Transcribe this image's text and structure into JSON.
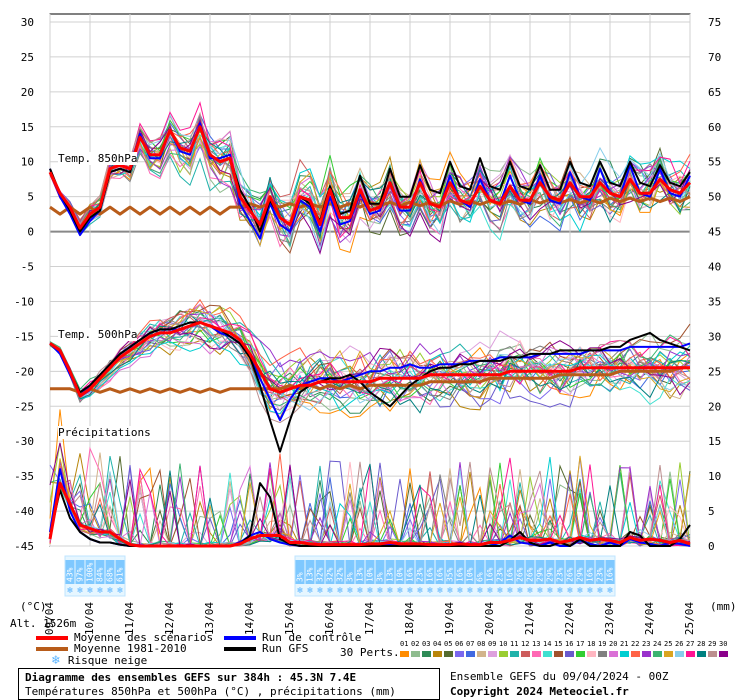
{
  "chart_data": {
    "type": "line",
    "title": "Diagramme des ensembles GEFS sur 384h : 45.3N 7.4E",
    "subtitle": "Températures 850hPa et 500hPa (°C) , précipitations (mm)",
    "run_info": "Ensemble GEFS du 09/04/2024 - 00Z",
    "copyright": "Copyright 2024 Meteociel.fr",
    "altitude": "Alt. 1526m",
    "left_axis_unit": "(°C)",
    "right_axis_unit": "(mm)",
    "left_ticks": [
      "30",
      "25",
      "20",
      "15",
      "10",
      "5",
      "0",
      "-5",
      "-10",
      "-15",
      "-20",
      "-25",
      "-30",
      "-35",
      "-40",
      "-45"
    ],
    "right_ticks": [
      "75",
      "70",
      "65",
      "60",
      "55",
      "50",
      "45",
      "40",
      "35",
      "30",
      "25",
      "20",
      "15",
      "10",
      "5",
      "0"
    ],
    "ylim_left": [
      -45,
      30
    ],
    "ylim_right": [
      0,
      75
    ],
    "x_labels": [
      "09/04",
      "10/04",
      "11/04",
      "12/04",
      "13/04",
      "14/04",
      "15/04",
      "16/04",
      "17/04",
      "18/04",
      "19/04",
      "20/04",
      "21/04",
      "22/04",
      "23/04",
      "24/04",
      "25/04"
    ],
    "section_labels": {
      "t850": "Temp. 850hPa",
      "t500": "Temp. 500hPa",
      "precip": "Précipitations"
    },
    "x_hours": [
      0,
      6,
      12,
      18,
      24,
      30,
      36,
      42,
      48,
      54,
      60,
      66,
      72,
      78,
      84,
      90,
      96,
      102,
      108,
      114,
      120,
      126,
      132,
      138,
      144,
      150,
      156,
      162,
      168,
      174,
      180,
      186,
      192,
      198,
      204,
      210,
      216,
      222,
      228,
      234,
      240,
      246,
      252,
      258,
      264,
      270,
      276,
      282,
      288,
      294,
      300,
      306,
      312,
      318,
      324,
      330,
      336,
      342,
      348,
      354,
      360,
      366,
      372,
      378,
      384
    ],
    "series": [
      {
        "name": "Moyenne des scénarios",
        "group": "t850",
        "values": [
          8.5,
          5.5,
          3.5,
          0.5,
          2.5,
          3.5,
          9,
          9.5,
          9,
          13.5,
          11,
          11,
          14.5,
          12,
          11.5,
          15,
          11,
          10,
          10.5,
          5,
          3,
          1,
          5,
          2,
          1,
          5,
          4.5,
          1,
          6,
          2,
          2,
          6,
          3,
          3.5,
          7,
          3.5,
          3.5,
          7,
          4,
          3.5,
          7,
          4.5,
          4,
          6.5,
          4.5,
          4,
          6.5,
          4.5,
          4.5,
          7,
          5,
          4.5,
          7,
          5,
          5,
          7,
          5.5,
          5,
          7.5,
          5.5,
          5.5,
          7.5,
          6,
          5.5,
          7
        ]
      },
      {
        "name": "Run de contrôle",
        "group": "t850",
        "values": [
          9,
          5,
          2.5,
          -0.5,
          1.5,
          3,
          8.5,
          9,
          8.5,
          14,
          10.5,
          10.5,
          14.5,
          11.5,
          11,
          15.5,
          10.5,
          10.5,
          11,
          4,
          1.5,
          -1,
          4,
          1,
          0,
          4.5,
          3.5,
          0,
          5,
          1,
          1.5,
          5.5,
          2.5,
          3,
          7,
          3,
          3,
          7.5,
          4,
          3.5,
          8,
          4.5,
          3.5,
          7.5,
          4.5,
          4,
          8,
          4.5,
          4,
          8,
          4.5,
          4,
          8.5,
          5,
          4.5,
          9,
          5.5,
          5,
          9.5,
          5.5,
          5,
          9,
          5.5,
          5,
          8
        ]
      },
      {
        "name": "Run GFS",
        "group": "t850",
        "values": [
          9,
          5.5,
          3,
          0,
          2,
          3,
          8.5,
          9,
          8.5,
          13.5,
          11,
          11,
          14.5,
          12,
          11.5,
          15,
          11,
          10,
          10.5,
          6,
          3.5,
          0,
          4.5,
          2,
          1,
          5,
          4,
          1.5,
          6.5,
          2.5,
          3,
          8,
          4,
          4,
          9,
          5,
          5,
          9.5,
          6,
          5.5,
          10,
          6.5,
          6,
          10.5,
          6.5,
          6,
          10,
          6.5,
          6,
          9.5,
          6,
          6,
          10,
          7,
          6.5,
          10,
          7,
          6.5,
          10,
          7,
          6.5,
          9.5,
          7,
          6.5,
          8.5
        ]
      },
      {
        "name": "Moyenne 1981-2010",
        "group": "t850",
        "values": [
          3.5,
          2.5,
          3.5,
          2.5,
          3.5,
          2.5,
          3.5,
          2.5,
          3.5,
          2.5,
          3.5,
          2.5,
          3.5,
          2.5,
          3.5,
          2.5,
          3.5,
          2.5,
          3.5,
          3.5,
          4,
          3.5,
          4,
          3.5,
          4,
          3.5,
          4,
          3.5,
          4,
          3.5,
          4,
          3.5,
          4.2,
          3.7,
          4.2,
          3.7,
          4.2,
          3.7,
          4.2,
          3.7,
          4.4,
          3.9,
          4.4,
          3.9,
          4.4,
          3.9,
          4.4,
          3.9,
          4.6,
          4.1,
          4.6,
          4.1,
          4.6,
          4.1,
          4.6,
          4.1,
          4.8,
          4.3,
          4.8,
          4.3,
          4.8,
          4.3,
          4.8,
          4.3,
          5
        ]
      },
      {
        "name": "Moyenne des scénarios",
        "group": "t500",
        "values": [
          -16,
          -17,
          -20,
          -23.5,
          -22.5,
          -21,
          -19.5,
          -18,
          -17,
          -16,
          -15,
          -14.5,
          -14.5,
          -14,
          -13.5,
          -13,
          -13.5,
          -14,
          -14.5,
          -15.5,
          -17.5,
          -20,
          -22.5,
          -23,
          -22.5,
          -22,
          -22,
          -21.5,
          -21.5,
          -21.5,
          -21.5,
          -21.5,
          -21.5,
          -21,
          -21,
          -21,
          -21,
          -21,
          -20.5,
          -20.5,
          -20.5,
          -20.5,
          -20.5,
          -20.5,
          -20.5,
          -20.5,
          -20,
          -20,
          -20,
          -20,
          -20,
          -20,
          -20,
          -19.5,
          -19.5,
          -19.5,
          -19.5,
          -19.5,
          -19.5,
          -19.5,
          -19.5,
          -19.5,
          -19.5,
          -19.5,
          -19.5
        ]
      },
      {
        "name": "Run de contrôle",
        "group": "t500",
        "values": [
          -16,
          -17.5,
          -20.5,
          -23.5,
          -22,
          -20.5,
          -19,
          -17.5,
          -16.5,
          -15.5,
          -14.5,
          -14,
          -14,
          -14,
          -13.5,
          -13,
          -13.5,
          -14.5,
          -15,
          -16,
          -18,
          -21,
          -24,
          -27,
          -24,
          -22,
          -21.5,
          -21,
          -21,
          -21.5,
          -21,
          -20.5,
          -20,
          -20,
          -19.5,
          -19.5,
          -19,
          -19.5,
          -19.5,
          -19,
          -19,
          -19,
          -18.5,
          -18.5,
          -18.5,
          -18,
          -18,
          -18,
          -18,
          -17.5,
          -17.5,
          -17.5,
          -17.5,
          -17.5,
          -17,
          -17,
          -17,
          -17,
          -16.5,
          -16.5,
          -16.5,
          -16.5,
          -16.5,
          -16.5,
          -16
        ]
      },
      {
        "name": "Run GFS",
        "group": "t500",
        "values": [
          -16,
          -17,
          -20,
          -23,
          -22,
          -20.5,
          -19,
          -17.5,
          -16.5,
          -15.5,
          -14.5,
          -14,
          -14,
          -13.5,
          -13,
          -13,
          -13.5,
          -14,
          -15,
          -16,
          -18,
          -22,
          -27,
          -31.5,
          -27,
          -23,
          -22,
          -21.5,
          -21,
          -21,
          -20.5,
          -21.5,
          -23,
          -24,
          -25,
          -23.5,
          -22,
          -21,
          -20,
          -19.5,
          -19.5,
          -19,
          -19,
          -18.5,
          -18.5,
          -18.5,
          -18,
          -18,
          -17.5,
          -17.5,
          -17.5,
          -17,
          -17,
          -17,
          -17,
          -17,
          -16.5,
          -16.5,
          -15.5,
          -15,
          -14.5,
          -15.5,
          -16,
          -16.5,
          -17
        ]
      },
      {
        "name": "Moyenne 1981-2010",
        "group": "t500",
        "values": [
          -22.5,
          -22.5,
          -22.5,
          -23,
          -22.5,
          -23,
          -22.5,
          -23,
          -22.5,
          -23,
          -22.5,
          -23,
          -22.5,
          -23,
          -22.5,
          -23,
          -22.5,
          -23,
          -22.5,
          -22.5,
          -22.5,
          -22.5,
          -22.5,
          -22.5,
          -22,
          -22.5,
          -22,
          -22.5,
          -22,
          -22.5,
          -22,
          -22.5,
          -22,
          -22,
          -22,
          -22,
          -22,
          -22,
          -21.5,
          -21.5,
          -21.5,
          -21.5,
          -21.5,
          -21.5,
          -21,
          -21,
          -21,
          -21,
          -21,
          -21,
          -21,
          -20.5,
          -20.5,
          -20.5,
          -20.5,
          -20.5,
          -20.5,
          -20,
          -20,
          -20,
          -20,
          -20,
          -20,
          -19.5,
          -19.5
        ]
      },
      {
        "name": "Moyenne des scénarios",
        "group": "precip",
        "values": [
          1,
          9,
          6,
          3,
          2.5,
          2,
          2,
          1,
          0.2,
          0,
          0,
          0,
          0,
          0,
          0,
          0,
          0,
          0,
          0,
          0.3,
          1,
          1.5,
          1.5,
          1.5,
          0.5,
          0.5,
          0.3,
          0.2,
          0.2,
          0.2,
          0.2,
          0.2,
          0.3,
          0.3,
          0.5,
          0.3,
          0.3,
          0.3,
          0.2,
          0.2,
          0.2,
          0.3,
          0.2,
          0.2,
          0.5,
          0.5,
          0.8,
          1.2,
          0.8,
          0.8,
          1,
          0.5,
          0.8,
          1.2,
          0.8,
          1,
          0.8,
          0.5,
          1.2,
          0.8,
          1,
          0.8,
          0.5,
          0.8,
          0.3
        ]
      },
      {
        "name": "Run de contrôle",
        "group": "precip",
        "values": [
          2,
          11,
          5,
          2,
          1,
          0.5,
          0.5,
          0.2,
          0,
          0,
          0,
          0,
          0,
          0,
          0,
          0,
          0,
          0,
          0,
          0.5,
          1.5,
          2,
          1,
          0.5,
          0.2,
          0,
          0,
          0,
          0,
          0,
          0,
          0,
          0,
          0,
          0.3,
          0,
          0,
          0,
          0,
          0,
          0,
          0.5,
          0,
          0,
          0,
          0.5,
          1.5,
          0.5,
          0.3,
          0,
          0.5,
          0,
          0,
          0.8,
          0.3,
          0,
          0.5,
          0,
          1,
          0.5,
          0.3,
          0,
          0.5,
          0.3,
          0
        ]
      },
      {
        "name": "Run GFS",
        "group": "precip",
        "values": [
          1.5,
          8,
          4,
          2,
          1,
          0.5,
          0.5,
          0.2,
          0,
          0,
          0,
          0,
          0,
          0,
          0,
          0,
          0,
          0,
          0,
          0.3,
          1.5,
          9,
          7,
          1,
          0.3,
          0,
          0,
          0,
          0,
          0,
          0,
          0,
          0,
          0,
          0,
          0,
          0,
          0,
          0,
          0,
          0,
          0,
          0,
          0,
          0,
          0,
          0.8,
          2,
          0.5,
          0,
          0,
          0.5,
          0,
          1,
          0,
          0,
          0,
          0,
          2,
          1.5,
          0,
          0,
          0,
          1,
          3
        ]
      }
    ],
    "snow_risk_groups": [
      {
        "start_hour": 12,
        "values": [
          "43%",
          "97%",
          "100%",
          "84%",
          "68%",
          "61%"
        ]
      },
      {
        "start_hour": 150,
        "values": [
          "3%",
          "13%",
          "32%",
          "32%",
          "32%",
          "3%",
          "13%",
          "10%",
          "3%",
          "13%",
          "10%",
          "16%",
          "23%",
          "16%",
          "16%",
          "35%",
          "16%",
          "10%",
          "6%",
          "16%",
          "23%",
          "16%",
          "26%",
          "26%",
          "29%",
          "29%",
          "23%",
          "26%",
          "29%",
          "16%",
          "23%",
          "16%"
        ]
      }
    ],
    "legend": [
      {
        "label": "Moyenne des scénarios",
        "color": "#ff0000"
      },
      {
        "label": "Moyenne 1981-2010",
        "color": "#b85c1a"
      },
      {
        "label": "Risque neige",
        "color": "#7ec8ff",
        "icon": "snowflake-icon"
      },
      {
        "label": "Run de contrôle",
        "color": "#0000ff"
      },
      {
        "label": "Run GFS",
        "color": "#000000"
      }
    ],
    "perturbations_label": "30 Perts.",
    "perturbation_ids": [
      "01",
      "02",
      "03",
      "04",
      "05",
      "06",
      "07",
      "08",
      "09",
      "10",
      "11",
      "12",
      "13",
      "14",
      "15",
      "16",
      "17",
      "18",
      "19",
      "20",
      "21",
      "22",
      "23",
      "24",
      "25",
      "26",
      "27",
      "28",
      "29",
      "30"
    ],
    "perturbation_colors": [
      "#ff8c00",
      "#8fbc8f",
      "#2e8b57",
      "#b8860b",
      "#556b2f",
      "#7b68ee",
      "#4169e1",
      "#d2b48c",
      "#dda0dd",
      "#9acd32",
      "#20b2aa",
      "#cd5c5c",
      "#ff69b4",
      "#40e0d0",
      "#a0522d",
      "#6a5acd",
      "#32cd32",
      "#ffb6c1",
      "#808080",
      "#da70d6",
      "#00ced1",
      "#ff6347",
      "#9932cc",
      "#3cb371",
      "#daa520",
      "#87ceeb",
      "#ff1493",
      "#008080",
      "#bc8f8f",
      "#8b008b"
    ],
    "grid": true
  }
}
